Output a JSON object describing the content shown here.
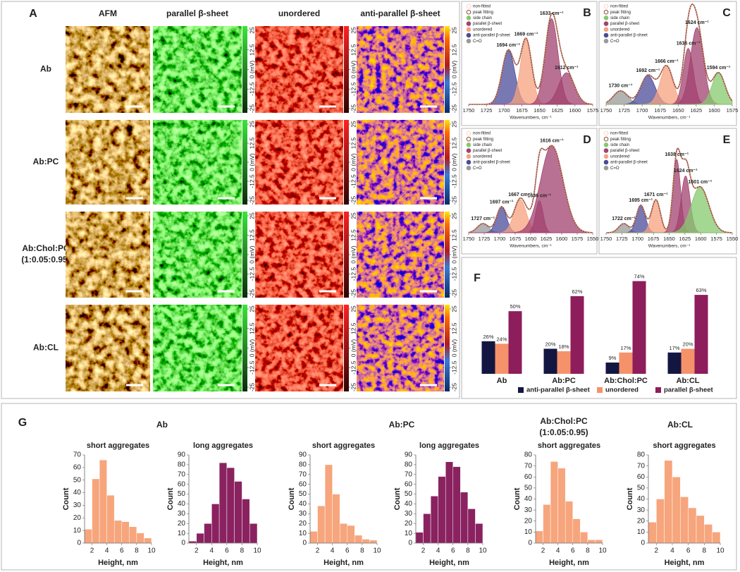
{
  "chart_data": [
    {
      "type": "map-grid",
      "panel": "A",
      "columns": [
        "AFM",
        "parallel β-sheet",
        "unordered",
        "anti-parallel β-sheet"
      ],
      "rows": [
        [
          "Ab"
        ],
        [
          "Ab:PC"
        ],
        [
          "Ab:Chol:PC",
          "(1:0.05:0.95)"
        ],
        [
          "Ab:CL"
        ]
      ],
      "colorbar_lim": [
        -25,
        25
      ],
      "colorbar_ticks": [
        25,
        12.5,
        {
          "value": 0,
          "label": "0 (mV)"
        },
        -12.5,
        -25
      ]
    },
    {
      "type": "spectrum",
      "panel": "B",
      "xlabel": "Wavenumbers, cm⁻¹",
      "xlim": [
        1750,
        1575
      ],
      "xticks": [
        1750,
        1725,
        1700,
        1675,
        1650,
        1625,
        1600,
        1575
      ],
      "ylim": [
        0,
        1
      ],
      "legend": [
        "non-fitted",
        "peak fitting",
        "side chain",
        "parallel β-sheet",
        "unordered",
        "anti-parallel β-sheet",
        "C=O"
      ],
      "legend_colors": [
        "#f6b08f",
        "#8c4b3c",
        "#86c96d",
        "#a2426f",
        "#f6a27f",
        "#4b4b9a",
        "#9a9a9a"
      ],
      "peaks": {
        "centers": [
          1694,
          1669,
          1633,
          1612
        ],
        "value_labels": [
          "1694 cm⁻¹",
          "1669 cm⁻¹",
          "1633 cm⁻¹",
          "1612 cm⁻¹"
        ],
        "heights": [
          0.6,
          0.72,
          0.95,
          0.35
        ],
        "widths": [
          9,
          8,
          9,
          11
        ],
        "colors": [
          "#4b4b9a",
          "#f6a27f",
          "#a2426f",
          "#a2426f"
        ]
      }
    },
    {
      "type": "spectrum",
      "panel": "C",
      "xlabel": "Wavenumbers, cm⁻¹",
      "xlim": [
        1750,
        1575
      ],
      "xticks": [
        1750,
        1725,
        1700,
        1675,
        1650,
        1625,
        1600,
        1575
      ],
      "ylim": [
        0,
        1
      ],
      "legend": [
        "non-fitted",
        "peak fitting",
        "side chain",
        "parallel β-sheet",
        "unordered",
        "anti-parallel β-sheet",
        "C=O"
      ],
      "legend_colors": [
        "#f6b08f",
        "#8c4b3c",
        "#86c96d",
        "#a2426f",
        "#f6a27f",
        "#4b4b9a",
        "#9a9a9a"
      ],
      "peaks": {
        "centers": [
          1730,
          1692,
          1666,
          1636,
          1624,
          1594
        ],
        "value_labels": [
          "1730 cm⁻¹",
          "1692 cm⁻¹",
          "1666 cm⁻¹",
          "1636 cm⁻¹",
          "1624 cm⁻¹",
          "1594 cm⁻¹"
        ],
        "heights": [
          0.15,
          0.32,
          0.42,
          0.62,
          0.85,
          0.35
        ],
        "widths": [
          10,
          10,
          9,
          7,
          9,
          9
        ],
        "colors": [
          "#9a9a9a",
          "#4b4b9a",
          "#f6a27f",
          "#a2426f",
          "#a2426f",
          "#86c96d"
        ]
      }
    },
    {
      "type": "spectrum",
      "panel": "D",
      "xlabel": "Wavenumbers, cm⁻¹",
      "xlim": [
        1750,
        1550
      ],
      "xticks": [
        1750,
        1725,
        1700,
        1675,
        1650,
        1625,
        1600,
        1575,
        1550
      ],
      "ylim": [
        0,
        1
      ],
      "legend": [
        "non-fitted",
        "peak fitting",
        "side chain",
        "parallel β-sheet",
        "unordered",
        "anti-parallel β-sheet",
        "C=O"
      ],
      "legend_colors": [
        "#f6b08f",
        "#8c4b3c",
        "#86c96d",
        "#a2426f",
        "#f6a27f",
        "#4b4b9a",
        "#9a9a9a"
      ],
      "peaks": {
        "centers": [
          1727,
          1697,
          1667,
          1636,
          1616
        ],
        "value_labels": [
          "1727 cm⁻¹",
          "1697 cm⁻¹",
          "1667 cm⁻¹",
          "1636 cm⁻¹",
          "1616 cm⁻¹"
        ],
        "heights": [
          0.1,
          0.28,
          0.36,
          0.35,
          0.95
        ],
        "widths": [
          9,
          8,
          10,
          6,
          18
        ],
        "colors": [
          "#9a9a9a",
          "#4b4b9a",
          "#f6a27f",
          "#a2426f",
          "#a2426f"
        ]
      }
    },
    {
      "type": "spectrum",
      "panel": "E",
      "xlabel": "Wavenumbers, cm⁻¹",
      "xlim": [
        1750,
        1550
      ],
      "xticks": [
        1750,
        1725,
        1700,
        1675,
        1650,
        1625,
        1600,
        1575,
        1550
      ],
      "ylim": [
        0,
        1
      ],
      "legend": [
        "non-fitted",
        "peak fitting",
        "side chain",
        "parallel β-sheet",
        "unordered",
        "anti-parallel β-sheet",
        "C=O"
      ],
      "legend_colors": [
        "#f6b08f",
        "#8c4b3c",
        "#86c96d",
        "#a2426f",
        "#f6a27f",
        "#4b4b9a",
        "#9a9a9a"
      ],
      "peaks": {
        "centers": [
          1722,
          1695,
          1671,
          1638,
          1624,
          1601
        ],
        "value_labels": [
          "1722 cm⁻¹",
          "1695 cm⁻¹",
          "1671 cm⁻¹",
          "1638 cm⁻¹",
          "1624 cm⁻¹",
          "1601 cm⁻¹"
        ],
        "heights": [
          0.1,
          0.3,
          0.36,
          0.8,
          0.62,
          0.5
        ],
        "widths": [
          8,
          7,
          7,
          6,
          7,
          14
        ],
        "colors": [
          "#9a9a9a",
          "#4b4b9a",
          "#f6a27f",
          "#a2426f",
          "#a2426f",
          "#86c96d"
        ]
      }
    },
    {
      "type": "bar",
      "panel": "F",
      "categories": [
        "Ab",
        "Ab:PC",
        "Ab:Chol:PC",
        "Ab:CL"
      ],
      "ylim": [
        0,
        76
      ],
      "series": [
        {
          "name": "anti-parallel β-sheet",
          "color": "#141642",
          "values": [
            26,
            20,
            9,
            17
          ],
          "value_labels": [
            "26%",
            "20%",
            "9%",
            "17%"
          ]
        },
        {
          "name": "unordered",
          "color": "#f5926a",
          "values": [
            24,
            18,
            17,
            20
          ],
          "value_labels": [
            "24%",
            "18%",
            "17%",
            "20%"
          ]
        },
        {
          "name": "parallel β-sheet",
          "color": "#8e1d5c",
          "values": [
            50,
            62,
            74,
            63
          ],
          "value_labels": [
            "50%",
            "62%",
            "74%",
            "63%"
          ]
        }
      ]
    },
    {
      "type": "histogram-panel",
      "panel": "G",
      "groups": [
        [
          "Ab"
        ],
        [
          "Ab:PC"
        ],
        [
          "Ab:Chol:PC",
          "(1:0.05:0.95)"
        ],
        [
          "Ab:CL"
        ]
      ],
      "histograms": [
        {
          "type": "histogram",
          "title": "short aggregates",
          "xlabel": "Height, nm",
          "ylabel": "Count",
          "color": "#f7a57c",
          "bins": [
            1,
            2,
            3,
            4,
            5,
            6,
            7,
            8,
            9,
            10
          ],
          "counts": [
            11,
            51,
            66,
            38,
            18,
            17,
            13,
            8,
            4
          ],
          "xlim": [
            1,
            10
          ],
          "xticks": [
            2,
            4,
            6,
            8,
            10
          ],
          "ylim": [
            0,
            70
          ],
          "yticks": [
            0,
            10,
            20,
            30,
            40,
            50,
            60,
            70
          ]
        },
        {
          "type": "histogram",
          "title": "long aggregates",
          "xlabel": "Height, nm",
          "ylabel": "Count",
          "color": "#8a2260",
          "bins": [
            1,
            2,
            3,
            4,
            5,
            6,
            7,
            8,
            9,
            10
          ],
          "counts": [
            2,
            10,
            20,
            40,
            82,
            77,
            63,
            45,
            20
          ],
          "xlim": [
            1,
            10
          ],
          "xticks": [
            2,
            4,
            6,
            8,
            10
          ],
          "ylim": [
            0,
            90
          ],
          "yticks": [
            0,
            10,
            20,
            30,
            40,
            50,
            60,
            70,
            80,
            90
          ]
        },
        {
          "type": "histogram",
          "title": "short aggregates",
          "xlabel": "Height, nm",
          "ylabel": "Count",
          "color": "#f7a57c",
          "bins": [
            1,
            2,
            3,
            4,
            5,
            6,
            7,
            8,
            9,
            10
          ],
          "counts": [
            12,
            38,
            80,
            50,
            20,
            18,
            8,
            4,
            3
          ],
          "xlim": [
            1,
            10
          ],
          "xticks": [
            2,
            4,
            6,
            8,
            10
          ],
          "ylim": [
            0,
            90
          ],
          "yticks": [
            0,
            10,
            20,
            30,
            40,
            50,
            60,
            70,
            80,
            90
          ]
        },
        {
          "type": "histogram",
          "title": "long aggregates",
          "xlabel": "Height, nm",
          "ylabel": "Count",
          "color": "#8a2260",
          "bins": [
            1,
            2,
            3,
            4,
            5,
            6,
            7,
            8,
            9,
            10
          ],
          "counts": [
            11,
            30,
            48,
            68,
            83,
            78,
            52,
            35,
            20
          ],
          "xlim": [
            1,
            10
          ],
          "xticks": [
            2,
            4,
            6,
            8,
            10
          ],
          "ylim": [
            0,
            90
          ],
          "yticks": [
            0,
            10,
            20,
            30,
            40,
            50,
            60,
            70,
            80,
            90
          ]
        },
        {
          "type": "histogram",
          "title": "short aggregates",
          "xlabel": "Height, nm",
          "ylabel": "Count",
          "color": "#f7a57c",
          "bins": [
            1,
            2,
            3,
            4,
            5,
            6,
            7,
            8,
            9,
            10
          ],
          "counts": [
            11,
            35,
            74,
            68,
            38,
            22,
            10,
            3,
            3
          ],
          "xlim": [
            1,
            10
          ],
          "xticks": [
            2,
            4,
            6,
            8,
            10
          ],
          "ylim": [
            0,
            80
          ],
          "yticks": [
            0,
            10,
            20,
            30,
            40,
            50,
            60,
            70,
            80
          ]
        },
        {
          "type": "histogram",
          "title": "short aggregates",
          "xlabel": "Height, nm",
          "ylabel": "Count",
          "color": "#f7a57c",
          "bins": [
            1,
            2,
            3,
            4,
            5,
            6,
            7,
            8,
            9,
            10
          ],
          "counts": [
            19,
            40,
            75,
            60,
            42,
            32,
            25,
            17,
            10
          ],
          "xlim": [
            1,
            10
          ],
          "xticks": [
            2,
            4,
            6,
            8,
            10
          ],
          "ylim": [
            0,
            80
          ],
          "yticks": [
            0,
            10,
            20,
            30,
            40,
            50,
            60,
            70,
            80
          ]
        }
      ]
    }
  ]
}
